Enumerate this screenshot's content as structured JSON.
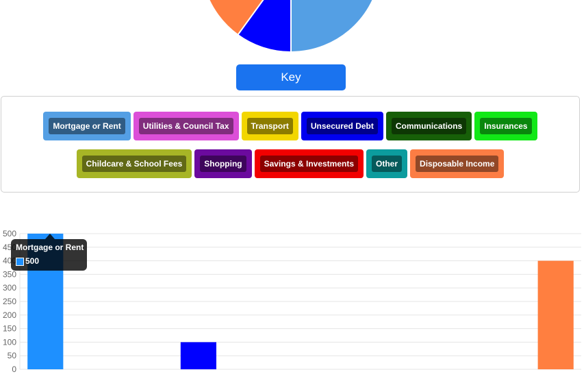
{
  "key_button": {
    "label": "Key"
  },
  "legend": {
    "items": [
      {
        "label": "Mortgage or Rent",
        "color": "#549fe4"
      },
      {
        "label": "Utilities & Council Tax",
        "color": "#dc4fd8"
      },
      {
        "label": "Transport",
        "color": "#f2d600"
      },
      {
        "label": "Unsecured Debt",
        "color": "#0000f0"
      },
      {
        "label": "Communications",
        "color": "#175f08"
      },
      {
        "label": "Insurances",
        "color": "#12e817"
      },
      {
        "label": "Childcare & School Fees",
        "color": "#a7b526"
      },
      {
        "label": "Shopping",
        "color": "#6b0a9e"
      },
      {
        "label": "Savings & Investments",
        "color": "#f20000"
      },
      {
        "label": "Other",
        "color": "#0c9c9e"
      },
      {
        "label": "Disposable Income",
        "color": "#fc7d44"
      }
    ]
  },
  "tooltip": {
    "title": "Mortgage or Rent",
    "value": "500",
    "color": "#1e90ff"
  },
  "chart_data": [
    {
      "type": "pie",
      "slices": [
        {
          "category": "Mortgage or Rent",
          "value": 500,
          "color": "#549fe4"
        },
        {
          "category": "Unsecured Debt",
          "value": 100,
          "color": "#0000ff"
        },
        {
          "category": "Disposable Income",
          "value": 400,
          "color": "#ff7f40"
        }
      ]
    },
    {
      "type": "bar",
      "categories": [
        "Mortgage or Rent",
        "Utilities & Council Tax",
        "Transport",
        "Unsecured Debt",
        "Communications",
        "Insurances",
        "Childcare & School Fees",
        "Shopping",
        "Savings & Investments",
        "Other",
        "Disposable Income"
      ],
      "values": [
        500,
        0,
        0,
        100,
        0,
        0,
        0,
        0,
        0,
        0,
        400
      ],
      "colors": [
        "#1e90ff",
        "#dc4fd8",
        "#f2d600",
        "#0000ff",
        "#175f08",
        "#12e817",
        "#a7b526",
        "#6b0a9e",
        "#f20000",
        "#0c9c9e",
        "#ff7f40"
      ],
      "ylim": [
        0,
        500
      ],
      "yticks": [
        "0",
        "50",
        "100",
        "150",
        "200",
        "250",
        "300",
        "350",
        "400",
        "450",
        "500"
      ],
      "grid": true
    }
  ]
}
